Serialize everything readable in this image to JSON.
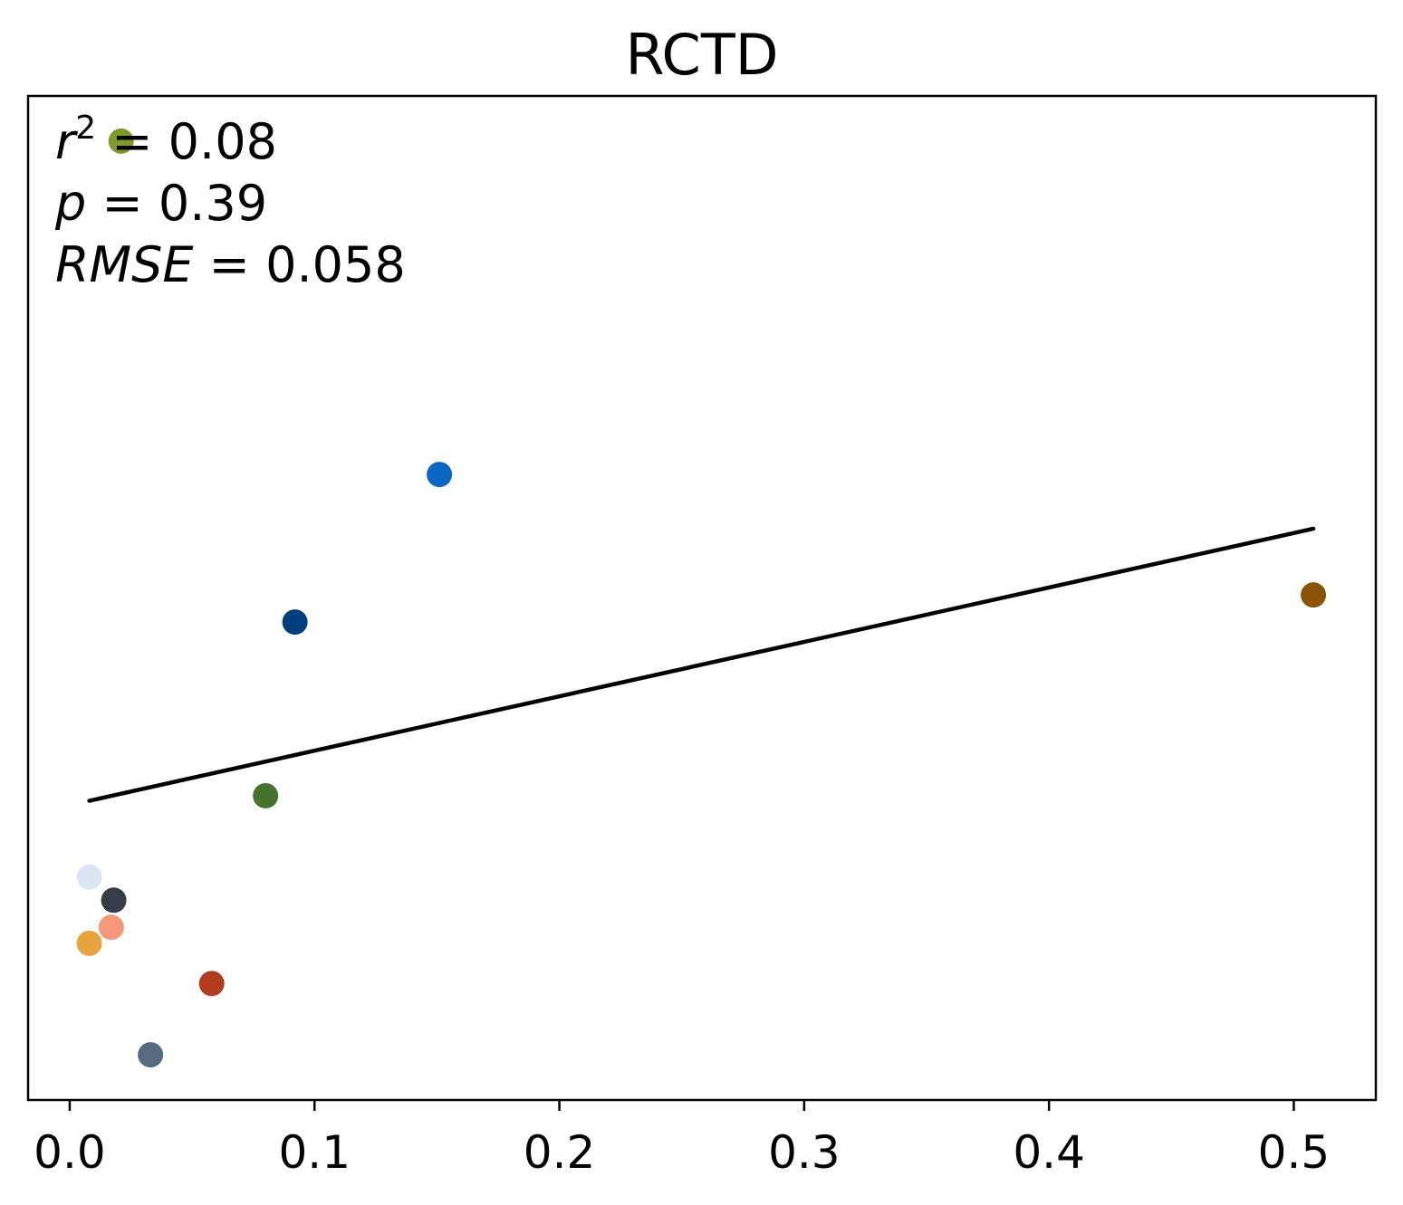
{
  "chart_data": {
    "type": "scatter",
    "title": "RCTD",
    "xlabel": "",
    "ylabel": "",
    "xlim": [
      -0.017,
      0.5335
    ],
    "ylim": [
      0,
      1
    ],
    "x_ticks": [
      "0.0",
      "0.1",
      "0.2",
      "0.3",
      "0.4",
      "0.5"
    ],
    "x_tick_values": [
      0.0,
      0.1,
      0.2,
      0.3,
      0.4,
      0.5
    ],
    "y_ticks_visible": false,
    "grid": false,
    "stats": [
      {
        "symbol": "r",
        "superscript": "2",
        "text": " = 0.08"
      },
      {
        "symbol": "p",
        "superscript": "",
        "text": " = 0.39"
      },
      {
        "symbol": "RMSE",
        "superscript": "",
        "text": " = 0.058"
      }
    ],
    "points": [
      {
        "x": 0.021,
        "y": 0.955,
        "color": "#7f9a2a"
      },
      {
        "x": 0.151,
        "y": 0.623,
        "color": "#0a66c2"
      },
      {
        "x": 0.092,
        "y": 0.476,
        "color": "#003e7e"
      },
      {
        "x": 0.508,
        "y": 0.503,
        "color": "#8b5307"
      },
      {
        "x": 0.08,
        "y": 0.303,
        "color": "#46722e"
      },
      {
        "x": 0.008,
        "y": 0.222,
        "color": "#dbe6f2"
      },
      {
        "x": 0.018,
        "y": 0.199,
        "color": "#343d48"
      },
      {
        "x": 0.017,
        "y": 0.172,
        "color": "#f4977a"
      },
      {
        "x": 0.008,
        "y": 0.156,
        "color": "#e8a23e"
      },
      {
        "x": 0.058,
        "y": 0.116,
        "color": "#b33c1f"
      },
      {
        "x": 0.033,
        "y": 0.045,
        "color": "#566a80"
      }
    ],
    "fit_line": {
      "x": [
        0.008,
        0.508
      ],
      "y": [
        0.298,
        0.569
      ],
      "color": "#000000"
    }
  }
}
